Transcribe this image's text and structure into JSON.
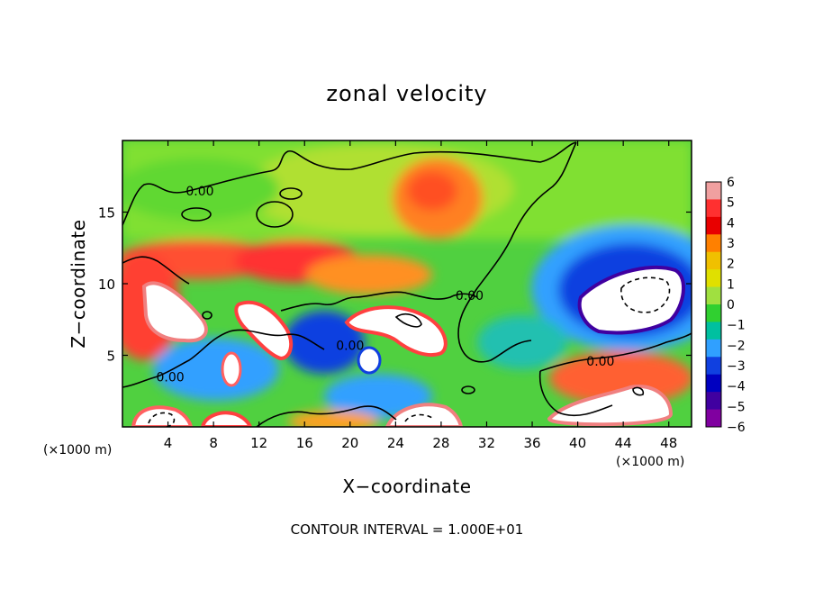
{
  "chart_data": {
    "type": "heatmap",
    "title": "zonal velocity",
    "xlabel": "X−coordinate",
    "ylabel": "Z−coordinate",
    "x_unit": "(×1000 m)",
    "y_unit": "(×1000 m)",
    "xlim": [
      0,
      50
    ],
    "ylim": [
      0,
      20
    ],
    "x_ticks": [
      4,
      8,
      12,
      16,
      20,
      24,
      28,
      32,
      36,
      40,
      44,
      48
    ],
    "y_ticks": [
      5,
      10,
      15
    ],
    "colorbar": {
      "ticks": [
        "6",
        "5",
        "4",
        "3",
        "2",
        "1",
        "0",
        "−1",
        "−2",
        "−3",
        "−4",
        "−5",
        "−6"
      ],
      "range": [
        -6,
        6
      ],
      "colors": [
        "#f0a0a0",
        "#ff3030",
        "#e80000",
        "#ff8000",
        "#f0c000",
        "#e0e000",
        "#a0e040",
        "#30d030",
        "#00c0a0",
        "#30a0ff",
        "#1040e0",
        "#0000c0",
        "#4000a0",
        "#8000a0"
      ]
    },
    "contour_labels": [
      {
        "text": "0.00",
        "x": 6.8,
        "y": 16.3
      },
      {
        "text": "0.00",
        "x": 30.5,
        "y": 9.0
      },
      {
        "text": "0.00",
        "x": 20.0,
        "y": 5.5
      },
      {
        "text": "0.00",
        "x": 42.0,
        "y": 4.4
      },
      {
        "text": "0.00",
        "x": 4.2,
        "y": 3.3
      }
    ],
    "field_features": [
      {
        "x": 4.2,
        "y": 8.3,
        "value": 6
      },
      {
        "x": 25.5,
        "y": 17.0,
        "value": 4
      },
      {
        "x": 14.0,
        "y": 12.0,
        "value": 4
      },
      {
        "x": 6.0,
        "y": 12.0,
        "value": 4
      },
      {
        "x": 25.0,
        "y": 7.2,
        "value": 6
      },
      {
        "x": 14.0,
        "y": 7.2,
        "value": 6
      },
      {
        "x": 11.0,
        "y": 3.2,
        "value": 6
      },
      {
        "x": 19.5,
        "y": 4.5,
        "value": 6
      },
      {
        "x": 47.0,
        "y": 9.0,
        "value": -6
      },
      {
        "x": 43.0,
        "y": 13.0,
        "value": -4
      },
      {
        "x": 37.0,
        "y": 7.0,
        "value": -2
      },
      {
        "x": 17.5,
        "y": 7.0,
        "value": -5
      },
      {
        "x": 8.0,
        "y": 3.2,
        "value": -4
      },
      {
        "x": 22.0,
        "y": 2.0,
        "value": -3
      },
      {
        "x": 43.0,
        "y": 2.5,
        "value": 6
      },
      {
        "x": 4.0,
        "y": 0.8,
        "value": 6
      },
      {
        "x": 9.5,
        "y": 0.5,
        "value": 6
      },
      {
        "x": 24.5,
        "y": 1.0,
        "value": 6
      },
      {
        "x": 17.0,
        "y": 0.5,
        "value": 4
      }
    ],
    "footer": "CONTOUR INTERVAL = 1.000E+01"
  }
}
